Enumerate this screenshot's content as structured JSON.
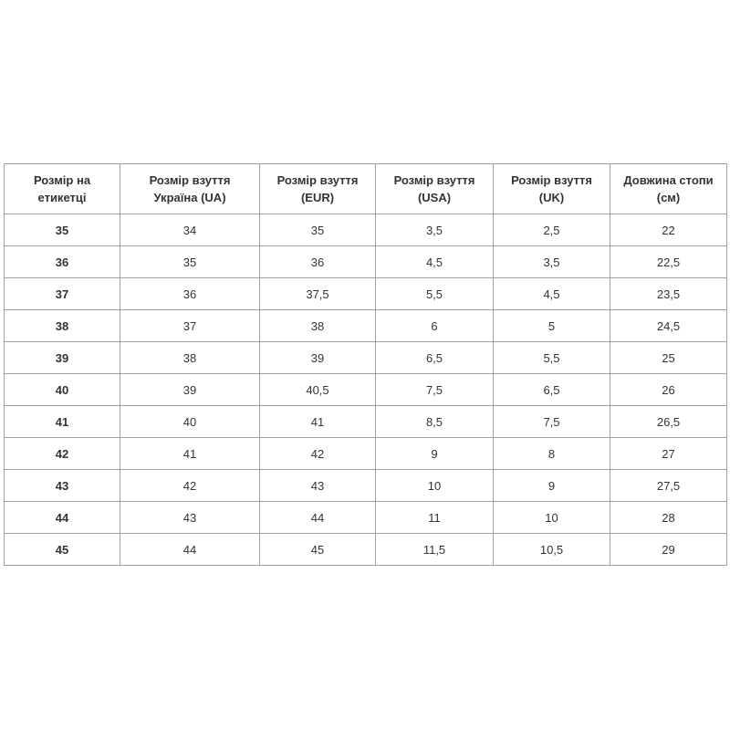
{
  "table": {
    "header": [
      "Розмір на етикетці",
      "Розмір взуття Україна (UA)",
      "Розмір взуття (EUR)",
      "Розмір взуття (USA)",
      "Розмір взуття (UK)",
      "Довжина стопи (см)"
    ],
    "rows": [
      [
        "35",
        "34",
        "35",
        "3,5",
        "2,5",
        "22"
      ],
      [
        "36",
        "35",
        "36",
        "4,5",
        "3,5",
        "22,5"
      ],
      [
        "37",
        "36",
        "37,5",
        "5,5",
        "4,5",
        "23,5"
      ],
      [
        "38",
        "37",
        "38",
        "6",
        "5",
        "24,5"
      ],
      [
        "39",
        "38",
        "39",
        "6,5",
        "5,5",
        "25"
      ],
      [
        "40",
        "39",
        "40,5",
        "7,5",
        "6,5",
        "26"
      ],
      [
        "41",
        "40",
        "41",
        "8,5",
        "7,5",
        "26,5"
      ],
      [
        "42",
        "41",
        "42",
        "9",
        "8",
        "27"
      ],
      [
        "43",
        "42",
        "43",
        "10",
        "9",
        "27,5"
      ],
      [
        "44",
        "43",
        "44",
        "11",
        "10",
        "28"
      ],
      [
        "45",
        "44",
        "45",
        "11,5",
        "10,5",
        "29"
      ]
    ]
  }
}
